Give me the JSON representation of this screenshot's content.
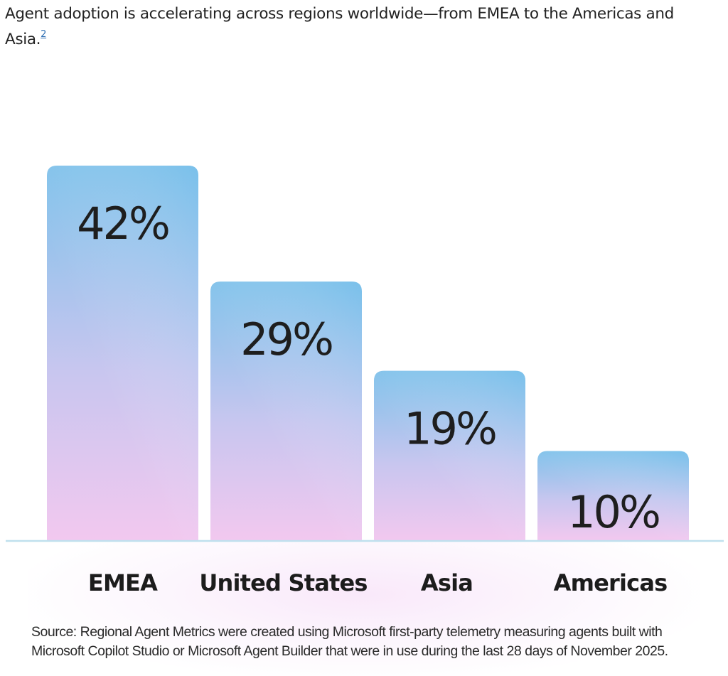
{
  "intro": {
    "text": "Agent adoption is accelerating across regions worldwide—from EMEA to the Americas and Asia.",
    "footnote": "2"
  },
  "chart_data": {
    "type": "bar",
    "categories": [
      "EMEA",
      "United States",
      "Asia",
      "Americas"
    ],
    "values": [
      42,
      29,
      19,
      10
    ],
    "value_labels": [
      "42%",
      "29%",
      "19%",
      "10%"
    ],
    "title": "",
    "xlabel": "",
    "ylabel": "",
    "ylim": [
      0,
      45
    ],
    "grid": false,
    "legend": "none",
    "colors": {
      "bar_top": "#7fc1ea",
      "bar_bottom": "#f2c8ef",
      "baseline": "#bfe0ee"
    }
  },
  "source": {
    "text": "Source: Regional Agent Metrics were created using Microsoft first-party telemetry measuring agents built with Microsoft Copilot Studio or Microsoft Agent Builder that were in use during the last 28 days of November 2025."
  }
}
